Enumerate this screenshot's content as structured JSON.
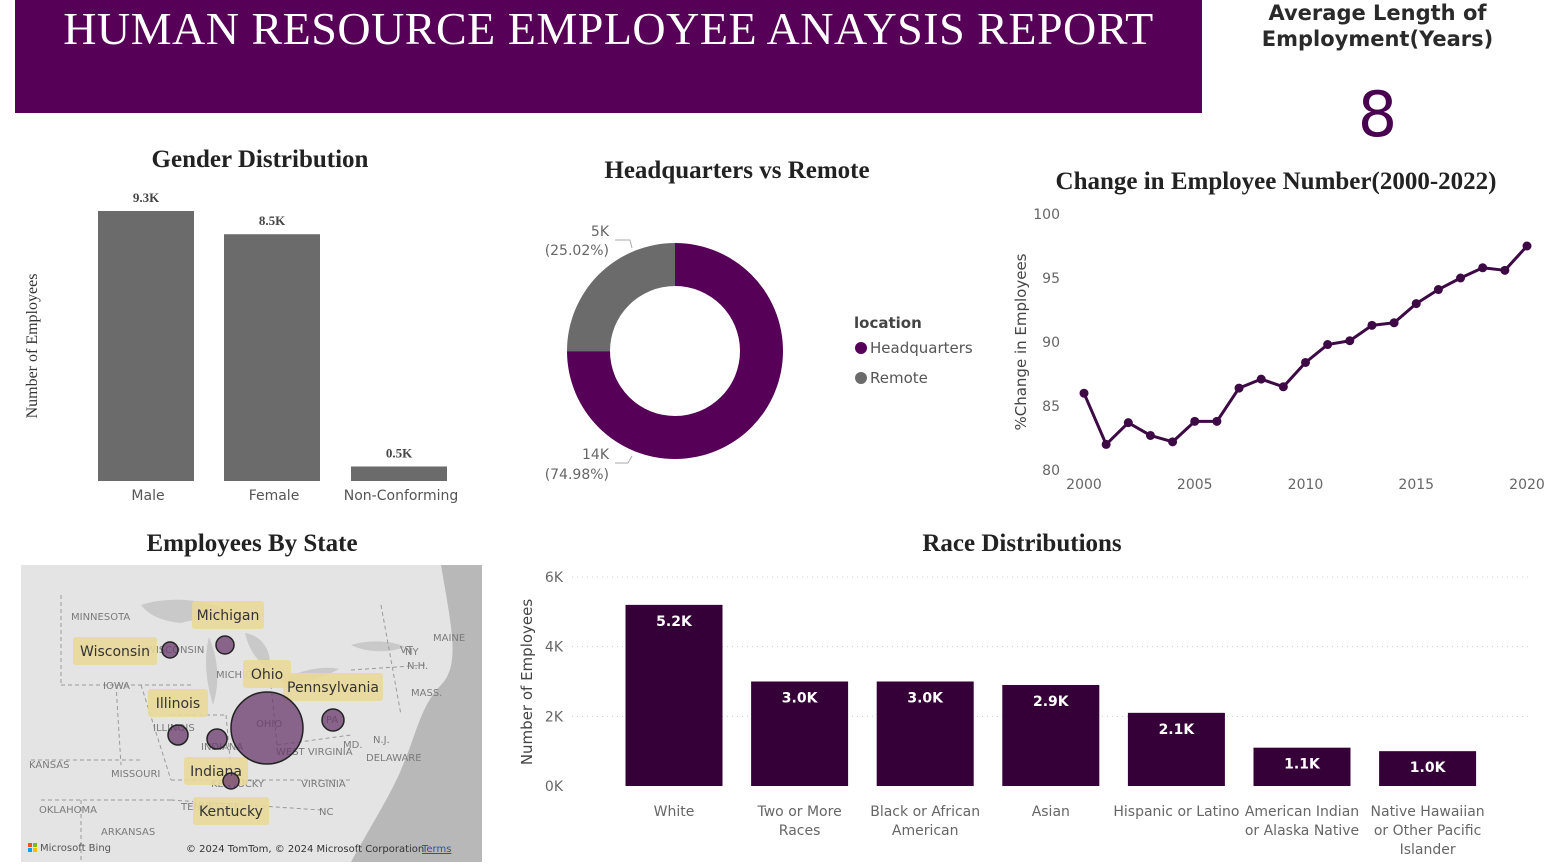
{
  "header": {
    "title": "HUMAN RESOURCE EMPLOYEE ANAYSIS REPORT",
    "kpi_label_line1": "Average Length of",
    "kpi_label_line2": "Employment(Years)",
    "kpi_value": "8"
  },
  "colors": {
    "purple": "#560057",
    "dark_purple": "#350038",
    "line_purple": "#3d0a45",
    "grey": "#6b6b6b"
  },
  "chart_data": [
    {
      "id": "gender",
      "type": "bar",
      "title": "Gender Distribution",
      "ylabel": "Number of Employees",
      "categories": [
        "Male",
        "Female",
        "Non-Conforming"
      ],
      "values": [
        9.3,
        8.5,
        0.5
      ],
      "data_labels": [
        "9.3K",
        "8.5K",
        "0.5K"
      ],
      "ylim": [
        0,
        9.3
      ]
    },
    {
      "id": "location",
      "type": "pie",
      "title": "Headquarters vs Remote",
      "legend_title": "location",
      "legend_position": "right",
      "slices": [
        {
          "name": "Headquarters",
          "value": 74.98,
          "label": "14K",
          "pct": "(74.98%)",
          "color": "#560057"
        },
        {
          "name": "Remote",
          "value": 25.02,
          "label": "5K",
          "pct": "(25.02%)",
          "color": "#6b6b6b"
        }
      ]
    },
    {
      "id": "trend",
      "type": "line",
      "title": "Change in Employee Number(2000-2022)",
      "ylabel": "%Change in Employees",
      "xlim": [
        2000,
        2020
      ],
      "ylim": [
        80,
        100
      ],
      "x_ticks": [
        "2000",
        "2005",
        "2010",
        "2015",
        "2020"
      ],
      "y_ticks": [
        "100",
        "95",
        "90",
        "85",
        "80"
      ],
      "x": [
        2000,
        2001,
        2002,
        2003,
        2004,
        2005,
        2006,
        2007,
        2008,
        2009,
        2010,
        2011,
        2012,
        2013,
        2014,
        2015,
        2016,
        2017,
        2018,
        2019,
        2020
      ],
      "y": [
        86.0,
        82.0,
        83.7,
        82.7,
        82.2,
        83.8,
        83.8,
        86.4,
        87.1,
        86.5,
        88.4,
        89.8,
        90.1,
        91.3,
        91.5,
        93.0,
        94.1,
        95.0,
        95.8,
        95.6,
        97.5
      ]
    },
    {
      "id": "race",
      "type": "bar",
      "title": "Race Distributions",
      "ylabel": "Number of Employees",
      "ylim": [
        0,
        6
      ],
      "y_ticks": [
        "6K",
        "4K",
        "2K",
        "0K"
      ],
      "grid": true,
      "categories": [
        [
          "White"
        ],
        [
          "Two or More",
          "Races"
        ],
        [
          "Black or African",
          "American"
        ],
        [
          "Asian"
        ],
        [
          "Hispanic or Latino"
        ],
        [
          "American Indian",
          "or Alaska Native"
        ],
        [
          "Native Hawaiian",
          "or Other Pacific",
          "Islander"
        ]
      ],
      "values": [
        5.2,
        3.0,
        3.0,
        2.9,
        2.1,
        1.1,
        1.0
      ],
      "data_labels": [
        "5.2K",
        "3.0K",
        "3.0K",
        "2.9K",
        "2.1K",
        "1.1K",
        "1.0K"
      ]
    }
  ],
  "map": {
    "title": "Employees By State",
    "state_labels": [
      "MINNESOTA",
      "WISCONSIN",
      "IOWA",
      "ILLINOIS",
      "INDIANA",
      "MICHIGAN",
      "OHIO",
      "WEST VIRGINIA",
      "VIRGINIA",
      "KENTUCKY",
      "TENNESSEE",
      "MISSOURI",
      "KANSAS",
      "OKLAHOMA",
      "ARKANSAS",
      "NC",
      "PA",
      "NY",
      "VT",
      "N.H.",
      "MAINE",
      "MASS.",
      "MD.",
      "DELAWARE",
      "N.J."
    ],
    "tooltips": [
      "Michigan",
      "Wisconsin",
      "Ohio",
      "Pennsylvania",
      "Illinois",
      "Indiana",
      "Kentucky"
    ],
    "brand": "Microsoft Bing",
    "copyright": "© 2024 TomTom, © 2024 Microsoft Corporation",
    "terms": "Terms"
  }
}
